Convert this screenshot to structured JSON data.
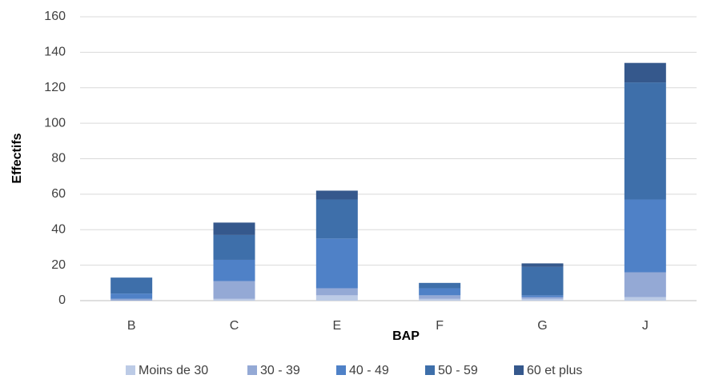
{
  "chart_data": {
    "type": "stacked_bar",
    "xlabel": "BAP",
    "ylabel": "Effectifs",
    "categories": [
      "B",
      "C",
      "E",
      "F",
      "G",
      "J"
    ],
    "series": [
      {
        "name": "Moins de 30",
        "color": "#bccbe6",
        "values": [
          0,
          1,
          3,
          1,
          1,
          2
        ]
      },
      {
        "name": "30 - 39",
        "color": "#94a9d5",
        "values": [
          1,
          10,
          4,
          2,
          1,
          14
        ]
      },
      {
        "name": "40 - 49",
        "color": "#4f81c7",
        "values": [
          3,
          12,
          28,
          4,
          1,
          41
        ]
      },
      {
        "name": "50 - 59",
        "color": "#3e6faa",
        "values": [
          9,
          14,
          22,
          3,
          16,
          66
        ]
      },
      {
        "name": "60 et plus",
        "color": "#35588c",
        "values": [
          0,
          7,
          5,
          0,
          2,
          11
        ]
      }
    ],
    "ylim": [
      0,
      160
    ],
    "yticks": [
      0,
      20,
      40,
      60,
      80,
      100,
      120,
      140,
      160
    ],
    "grid": true,
    "legend": "bottom"
  }
}
